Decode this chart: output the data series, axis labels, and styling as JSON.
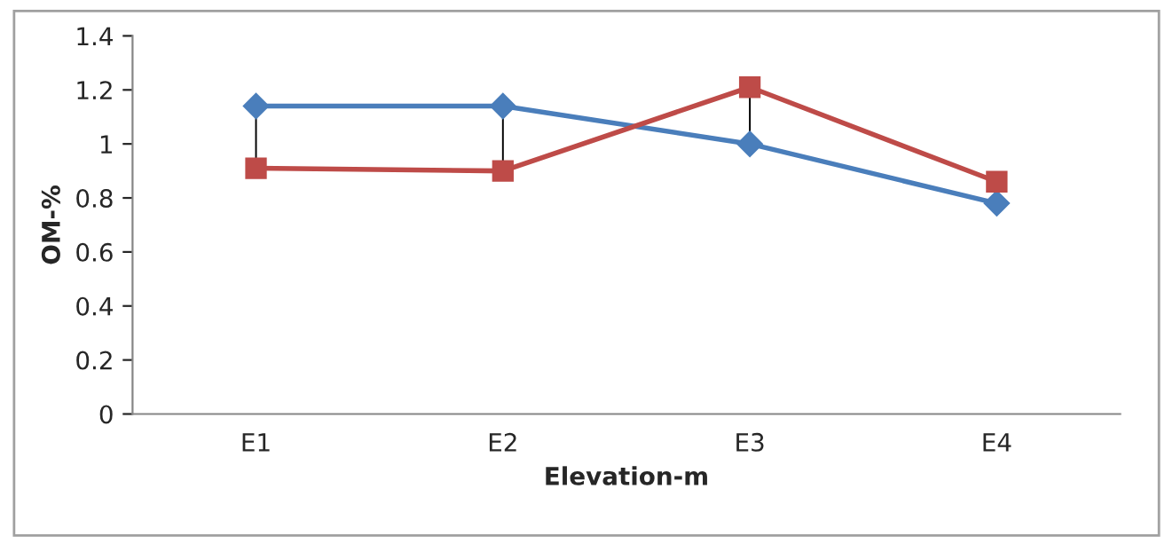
{
  "chart_data": {
    "type": "line",
    "xlabel": "Elevation-m",
    "ylabel": "OM-%",
    "categories": [
      "E1",
      "E2",
      "E3",
      "E4"
    ],
    "series": [
      {
        "color": "#4a7ebb",
        "marker": "diamond",
        "values": [
          1.14,
          1.14,
          1.0,
          0.78
        ]
      },
      {
        "color": "#be4b48",
        "marker": "square",
        "values": [
          0.91,
          0.9,
          1.21,
          0.86
        ]
      }
    ],
    "ylim": [
      0,
      1.4
    ],
    "yticks": [
      0,
      0.2,
      0.4,
      0.6,
      0.8,
      1,
      1.2,
      1.4
    ],
    "grid": false,
    "legend": false
  }
}
